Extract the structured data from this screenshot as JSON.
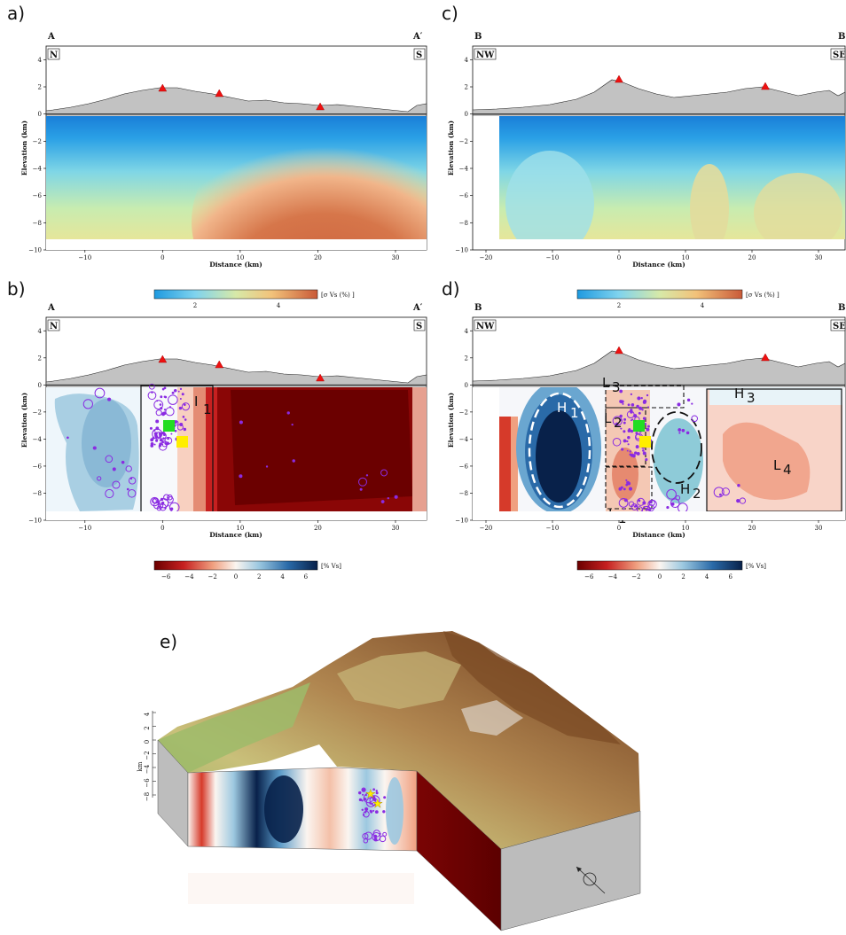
{
  "panel_labels": [
    "a)",
    "b)",
    "c)",
    "d)",
    "e)"
  ],
  "profile_AA": {
    "start": "A",
    "end": "A′",
    "left_dir": "N",
    "right_dir": "S"
  },
  "profile_BB": {
    "start": "B",
    "end": "B",
    "left_dir": "NW",
    "right_dir": "SE"
  },
  "axes": {
    "ylabel": "Elevation (km)",
    "xlabel": "Distance (km)"
  },
  "colorbar_sigma": {
    "unit": "[σ Vs (%) ]",
    "ticks": [
      "2",
      "4"
    ]
  },
  "colorbar_dvs": {
    "unit": "[% Vs]",
    "ticks": [
      "−6",
      "−4",
      "−2",
      "0",
      "2",
      "4",
      "6"
    ]
  },
  "annotations_b": [
    "I",
    "1"
  ],
  "annotations_d": [
    "H",
    "1",
    "H",
    "2",
    "H",
    "3",
    "L",
    "1",
    "L",
    "2",
    "L",
    "3",
    "L",
    "4"
  ],
  "block3d": {
    "ylabel": "km",
    "ticks": [
      "4",
      "2",
      "0",
      "−2",
      "−4",
      "−6",
      "−8"
    ]
  },
  "colors": {
    "volcano": "#ee1111",
    "quake": "#8a2be2",
    "green_marker": "#22dd22",
    "yellow_marker": "#ffee00",
    "topo": "#c2c2c2"
  },
  "chart_data": [
    {
      "panel": "a",
      "type": "heatmap",
      "title": "",
      "xlabel": "Distance (km)",
      "ylabel": "Elevation (km)",
      "xlim": [
        -15,
        34
      ],
      "ylim": [
        -10,
        5
      ],
      "xticks": [
        -10,
        0,
        10,
        20,
        30
      ],
      "yticks": [
        4,
        2,
        0,
        -2,
        -4,
        -6,
        -8,
        -10
      ],
      "volcanoes_x": [
        0,
        7.3,
        20.3
      ],
      "colorbar": "sigma Vs (%)"
    },
    {
      "panel": "b",
      "type": "heatmap",
      "title": "",
      "xlabel": "Distance (km)",
      "ylabel": "Elevation (km)",
      "xlim": [
        -15,
        34
      ],
      "ylim": [
        -10,
        5
      ],
      "xticks": [
        -10,
        0,
        10,
        20,
        30
      ],
      "yticks": [
        4,
        2,
        0,
        -2,
        -4,
        -6,
        -8,
        -10
      ],
      "volcanoes_x": [
        0,
        7.3,
        20.3
      ],
      "colorbar": "% Vs",
      "colorbar_range": [
        -7,
        7
      ]
    },
    {
      "panel": "c",
      "type": "heatmap",
      "title": "",
      "xlabel": "Distance (km)",
      "ylabel": "Elevation (km)",
      "xlim": [
        -22,
        34
      ],
      "ylim": [
        -10,
        5
      ],
      "xticks": [
        -20,
        -10,
        0,
        10,
        20,
        30
      ],
      "yticks": [
        4,
        2,
        0,
        -2,
        -4,
        -6,
        -8,
        -10
      ],
      "volcanoes_x": [
        0,
        22
      ],
      "colorbar": "sigma Vs (%)"
    },
    {
      "panel": "d",
      "type": "heatmap",
      "title": "",
      "xlabel": "Distance (km)",
      "ylabel": "Elevation (km)",
      "xlim": [
        -22,
        34
      ],
      "ylim": [
        -10,
        5
      ],
      "xticks": [
        -20,
        -10,
        0,
        10,
        20,
        30
      ],
      "yticks": [
        4,
        2,
        0,
        -2,
        -4,
        -6,
        -8,
        -10
      ],
      "volcanoes_x": [
        0,
        22
      ],
      "colorbar": "% Vs",
      "colorbar_range": [
        -7,
        7
      ]
    }
  ]
}
